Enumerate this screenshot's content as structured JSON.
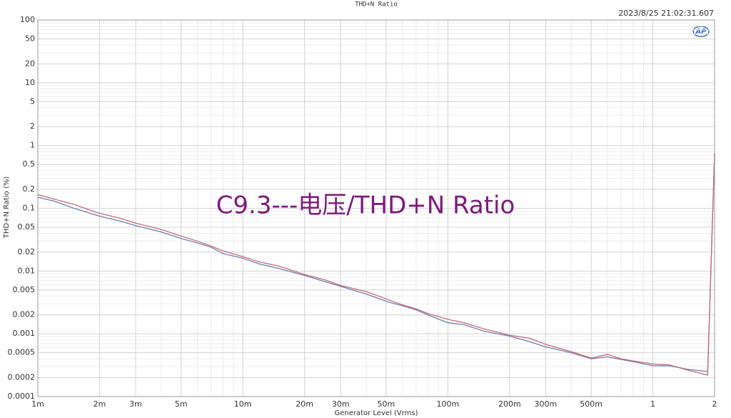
{
  "chart_data": {
    "type": "line",
    "title": "THD+N Ratio",
    "timestamp": "2023/8/25 21:02:31.607",
    "logo": "AP",
    "annotation": "C9.3---电压/THD+N Ratio",
    "xlabel": "Generator Level (Vrms)",
    "ylabel": "THD+N Ratio (%)",
    "xlog": true,
    "ylog": true,
    "grid": true,
    "xlim": [
      0.001,
      2
    ],
    "ylim": [
      0.0001,
      100
    ],
    "xticks": [
      {
        "value": 0.001,
        "label": "1m"
      },
      {
        "value": 0.002,
        "label": "2m"
      },
      {
        "value": 0.003,
        "label": "3m"
      },
      {
        "value": 0.005,
        "label": "5m"
      },
      {
        "value": 0.01,
        "label": "10m"
      },
      {
        "value": 0.02,
        "label": "20m"
      },
      {
        "value": 0.03,
        "label": "30m"
      },
      {
        "value": 0.05,
        "label": "50m"
      },
      {
        "value": 0.1,
        "label": "100m"
      },
      {
        "value": 0.2,
        "label": "200m"
      },
      {
        "value": 0.3,
        "label": "300m"
      },
      {
        "value": 0.5,
        "label": "500m"
      },
      1,
      2
    ],
    "yticks": [
      100,
      50,
      20,
      10,
      5,
      2,
      1,
      0.5,
      0.2,
      0.1,
      0.05,
      0.02,
      0.01,
      0.005,
      0.002,
      0.001,
      0.0005,
      0.0002,
      0.0001
    ],
    "x": [
      0.001,
      0.0012,
      0.0015,
      0.002,
      0.0025,
      0.003,
      0.004,
      0.005,
      0.006,
      0.007,
      0.008,
      0.01,
      0.012,
      0.015,
      0.02,
      0.025,
      0.03,
      0.04,
      0.05,
      0.06,
      0.07,
      0.08,
      0.1,
      0.12,
      0.15,
      0.2,
      0.25,
      0.3,
      0.4,
      0.5,
      0.6,
      0.7,
      0.8,
      1,
      1.2,
      1.5,
      1.85,
      2
    ],
    "series": [
      {
        "color": "#6f7eaa",
        "values": [
          0.15,
          0.13,
          0.1,
          0.075,
          0.063,
          0.053,
          0.042,
          0.033,
          0.028,
          0.024,
          0.019,
          0.016,
          0.013,
          0.011,
          0.0085,
          0.0068,
          0.0057,
          0.0043,
          0.0033,
          0.0028,
          0.0024,
          0.002,
          0.0015,
          0.0014,
          0.0011,
          0.00092,
          0.00075,
          0.00062,
          0.0005,
          0.0004,
          0.00043,
          0.00039,
          0.00036,
          0.00031,
          0.00031,
          0.00027,
          0.00025,
          0.75
        ]
      },
      {
        "color": "#c46a78",
        "values": [
          0.165,
          0.14,
          0.115,
          0.083,
          0.07,
          0.058,
          0.046,
          0.036,
          0.03,
          0.025,
          0.021,
          0.017,
          0.014,
          0.012,
          0.0088,
          0.0073,
          0.0059,
          0.0047,
          0.0036,
          0.0029,
          0.0025,
          0.0021,
          0.0017,
          0.0015,
          0.0012,
          0.00095,
          0.00085,
          0.00068,
          0.00052,
          0.00041,
          0.00047,
          0.0004,
          0.00037,
          0.00033,
          0.00032,
          0.00026,
          0.00022,
          0.75
        ]
      }
    ]
  }
}
